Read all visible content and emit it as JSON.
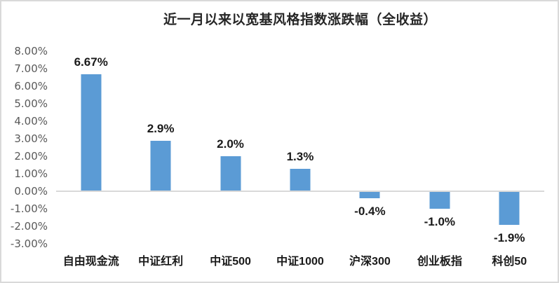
{
  "frame": {
    "background": "#ffffff",
    "border_color": "#d9d9d9"
  },
  "chart_data": {
    "type": "bar",
    "title": "近一月以来以宽基风格指数涨跌幅（全收益）",
    "xlabel": "",
    "ylabel": "",
    "categories": [
      "自由现金流",
      "中证红利",
      "中证500",
      "中证1000",
      "沪深300",
      "创业板指",
      "科创50"
    ],
    "values": [
      6.67,
      2.9,
      2.0,
      1.3,
      -0.4,
      -1.0,
      -1.9
    ],
    "data_labels": [
      "6.67%",
      "2.9%",
      "2.0%",
      "1.3%",
      "-0.4%",
      "-1.0%",
      "-1.9%"
    ],
    "y_ticks": [
      "8.00%",
      "7.00%",
      "6.00%",
      "5.00%",
      "4.00%",
      "3.00%",
      "2.00%",
      "1.00%",
      "0.00%",
      "-1.00%",
      "-2.00%",
      "-3.00%"
    ],
    "y_tick_values": [
      8,
      7,
      6,
      5,
      4,
      3,
      2,
      1,
      0,
      -1,
      -2,
      -3
    ],
    "ylim": [
      -3,
      8
    ],
    "grid": false,
    "legend_position": "none",
    "bar_color": "#5B9BD5",
    "axis_line_color": "#d9d9d9",
    "tick_label_color": "#595959",
    "label_color": "#1a1a1a"
  }
}
